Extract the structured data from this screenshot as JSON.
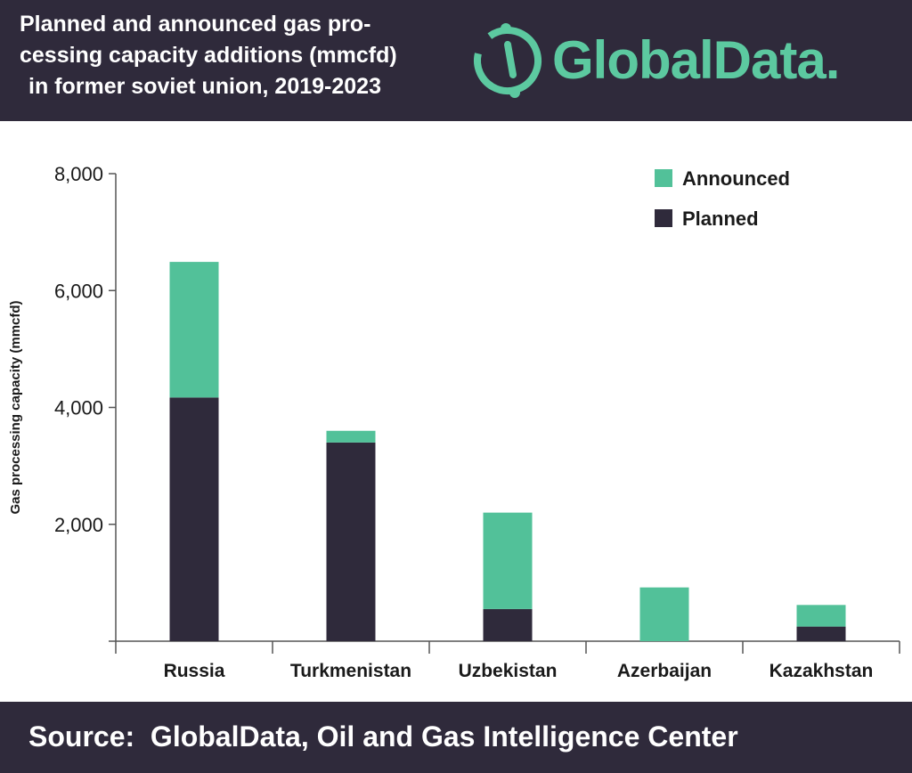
{
  "header": {
    "title_lines": [
      "Planned and announced gas pro-",
      "cessing capacity additions (mmcfd)",
      "in former soviet union, 2019-2023"
    ],
    "logo_text": "GlobalData.",
    "background_color": "#2f2a3b",
    "logo_color": "#5cc9a0"
  },
  "chart_data": {
    "type": "bar",
    "stacked": true,
    "title": "Planned and announced gas processing capacity additions (mmcfd) in former soviet union, 2019-2023",
    "xlabel": "",
    "ylabel": "Gas processing capacity (mmcfd)",
    "categories": [
      "Russia",
      "Turkmenistan",
      "Uzbekistan",
      "Azerbaijan",
      "Kazakhstan"
    ],
    "series": [
      {
        "name": "Planned",
        "color": "#2f2a3b",
        "values": [
          4170,
          3400,
          550,
          0,
          250
        ]
      },
      {
        "name": "Announced",
        "color": "#52c199",
        "values": [
          2320,
          200,
          1650,
          920,
          370
        ]
      }
    ],
    "ylim": [
      0,
      8000
    ],
    "yticks": [
      0,
      2000,
      4000,
      6000,
      8000
    ],
    "ytick_labels": [
      "",
      "2,000",
      "4,000",
      "6,000",
      "8,000"
    ],
    "legend": {
      "entries": [
        "Announced",
        "Planned"
      ],
      "placement": "top-right"
    },
    "grid": false
  },
  "footer": {
    "source_text": "Source:  GlobalData, Oil and Gas Intelligence Center"
  }
}
